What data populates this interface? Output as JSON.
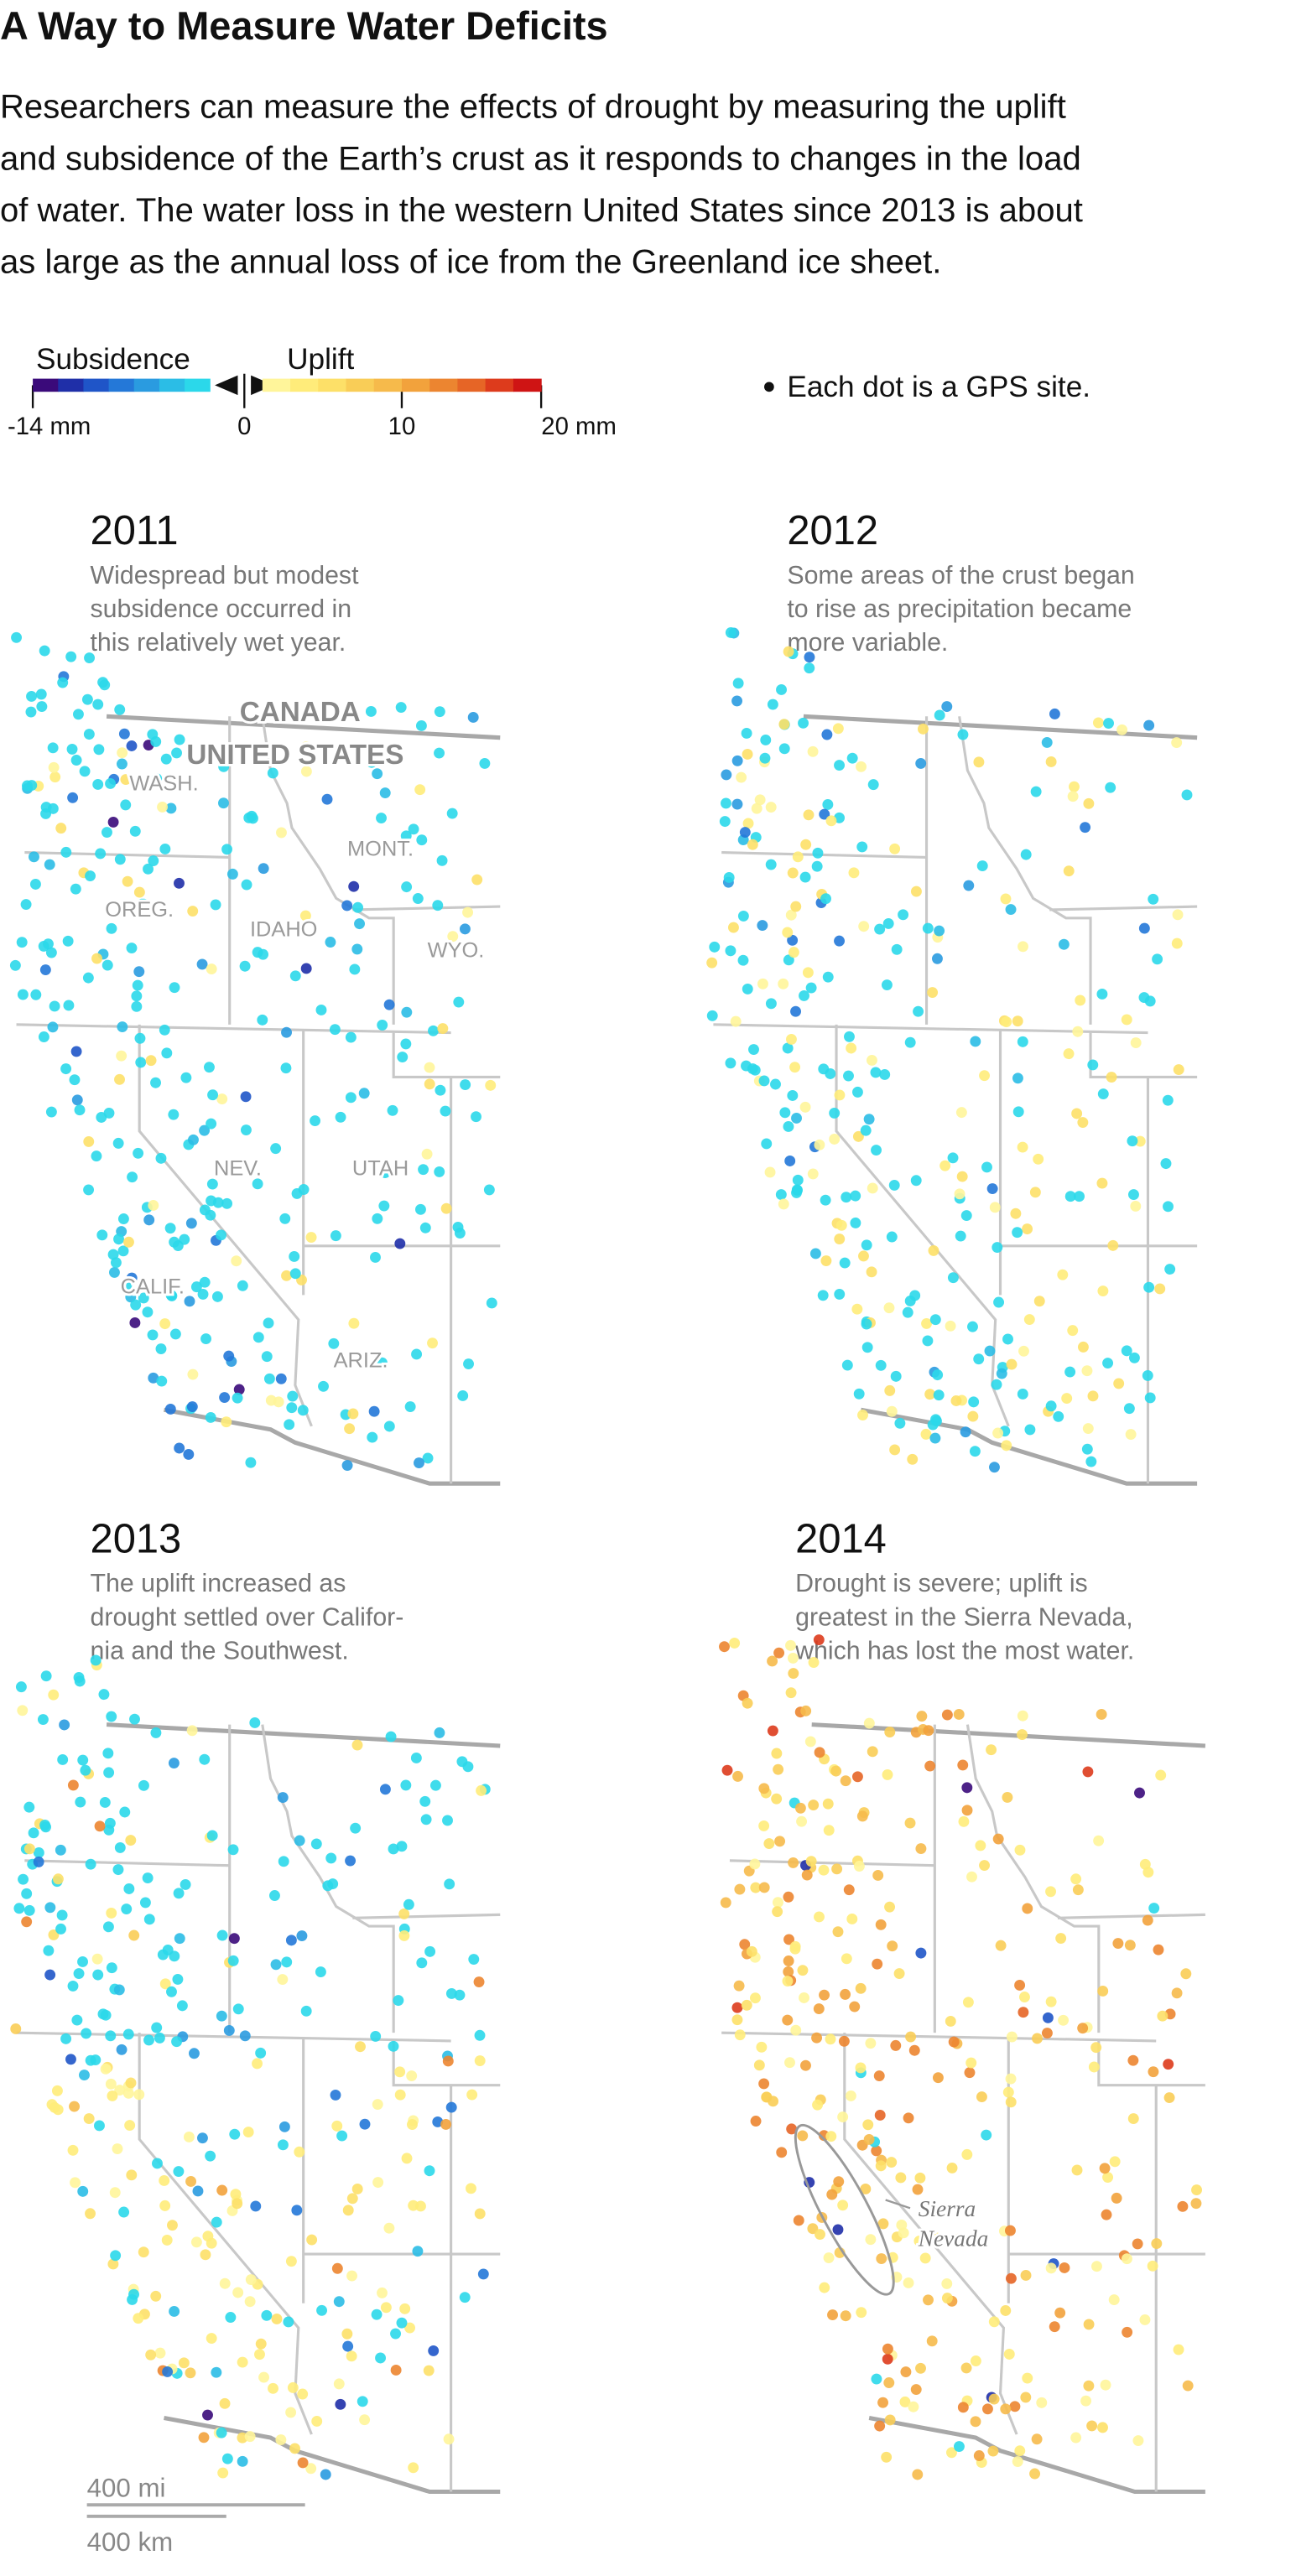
{
  "header": {
    "title": "A Way to Measure Water Deficits",
    "description": [
      "Researchers can measure the effects of drought by measuring the uplift",
      "and subsidence of the Earth’s crust as it responds to changes in the load",
      "of water. The water loss in the western United States since 2013 is about",
      "as large as the annual loss of ice from the Greenland ice sheet."
    ]
  },
  "legend": {
    "subsidence_label": "Subsidence",
    "uplift_label": "Uplift",
    "ticks": [
      "-14 mm",
      "0",
      "10",
      "20 mm"
    ],
    "note": "Each dot is a GPS site.",
    "subsidence_colors": [
      "#3a0a7a",
      "#1f2fa8",
      "#1f55c8",
      "#2478d8",
      "#2a9be0",
      "#2bbde6",
      "#2bd8ea"
    ],
    "uplift_colors": [
      "#fff59a",
      "#ffec7a",
      "#fde068",
      "#f9cd57",
      "#f6ba4b",
      "#f2a23c",
      "#ec8530",
      "#e66526",
      "#dd3b1c",
      "#cf1414"
    ]
  },
  "panels": [
    {
      "year": "2011",
      "description": [
        "Widespread but modest",
        "subsidence occurred in",
        "this relatively wet year."
      ]
    },
    {
      "year": "2012",
      "description": [
        "Some areas of the crust began",
        "to rise as precipitation became",
        "more variable."
      ]
    },
    {
      "year": "2013",
      "description": [
        "The uplift increased as",
        "drought settled over Califor-",
        "nia and the Southwest."
      ]
    },
    {
      "year": "2014",
      "description": [
        "Drought is severe; uplift is",
        "greatest in the Sierra Nevada,",
        "which has lost the most water."
      ]
    }
  ],
  "map_labels": [
    "CANADA",
    "UNITED STATES",
    "WASH.",
    "MONT.",
    "OREG.",
    "IDAHO",
    "WYO.",
    "NEV.",
    "UTAH",
    "CALIF.",
    "ARIZ."
  ],
  "annotation": [
    "Sierra",
    "Nevada"
  ],
  "scale": [
    "400 mi",
    "400 km"
  ]
}
